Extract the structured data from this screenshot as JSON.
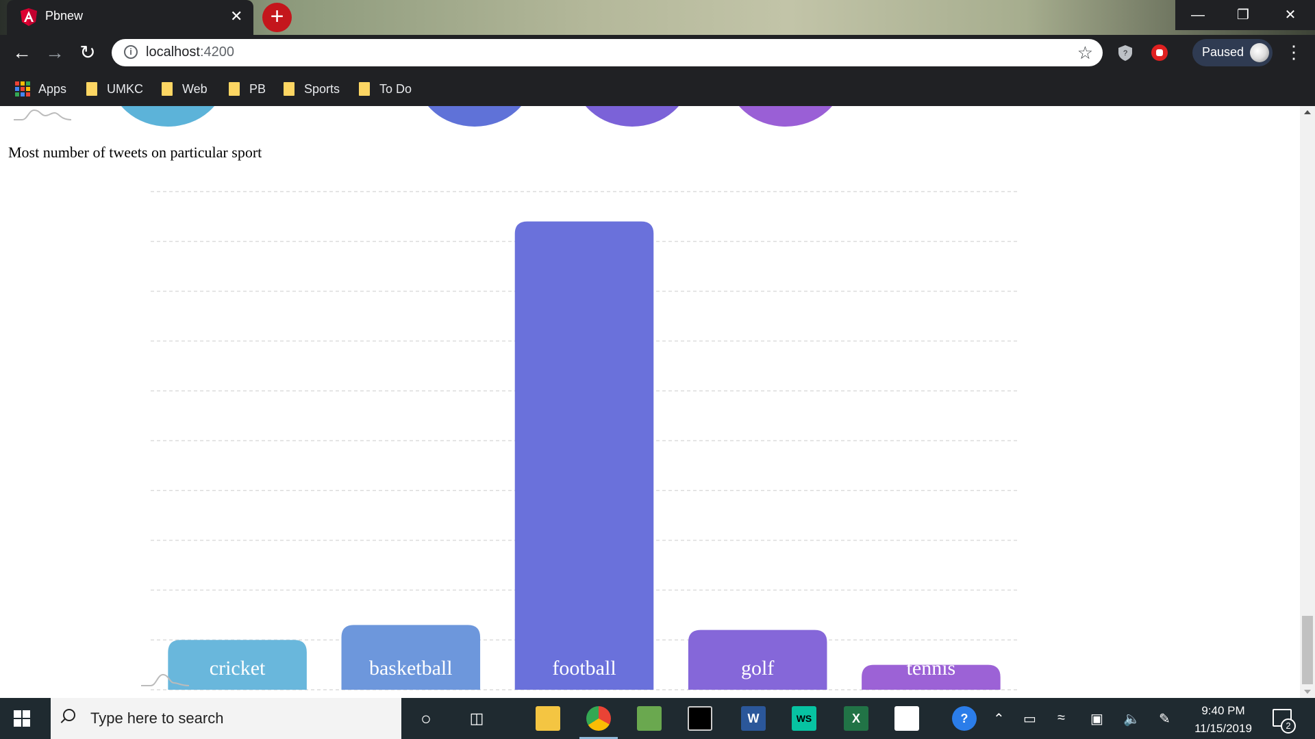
{
  "browser": {
    "tab_title": "Pbnew",
    "close_label": "✕",
    "new_tab_label": "+",
    "url_host": "localhost",
    "url_port": ":4200",
    "profile_label": "Paused",
    "bookmarks": [
      {
        "label": "Apps"
      },
      {
        "label": "UMKC"
      },
      {
        "label": "Web"
      },
      {
        "label": "PB"
      },
      {
        "label": "Sports"
      },
      {
        "label": "To Do"
      }
    ]
  },
  "page": {
    "section_title": "Most number of tweets on particular sport"
  },
  "chart_data": {
    "type": "bar",
    "categories": [
      "cricket",
      "basketball",
      "football",
      "golf",
      "tennis"
    ],
    "values": [
      1,
      1.3,
      9.4,
      1.2,
      0.5
    ],
    "ylim": [
      0,
      10
    ],
    "grid": true,
    "colors": [
      "#69b7dc",
      "#6d97dc",
      "#6a71db",
      "#8567d9",
      "#9c62d6"
    ],
    "label_color": "#ffffff"
  },
  "taskbar": {
    "search_placeholder": "Type here to search",
    "time": "9:40 PM",
    "date": "11/15/2019",
    "notification_count": "2"
  }
}
